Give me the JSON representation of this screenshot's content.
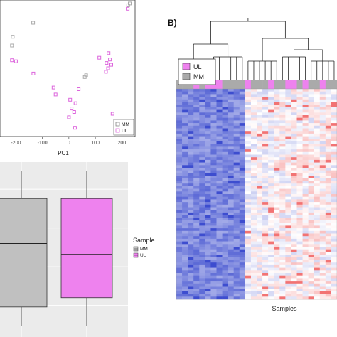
{
  "chart_data": [
    {
      "type": "scatter",
      "xlabel": "PC1",
      "ylabel": "",
      "xlim": [
        -260,
        250
      ],
      "ylim": [
        -150,
        240
      ],
      "xticks": [
        -200,
        -100,
        0,
        100,
        200
      ],
      "tick_labels": [
        "-200",
        "-100",
        "0",
        "100",
        "200"
      ],
      "grid": true,
      "legend": {
        "placement": "bottom-right",
        "entries": [
          "MM",
          "UL"
        ]
      },
      "colors": {
        "MM": "#aaaaaa",
        "UL": "#dd66dd"
      },
      "series": [
        {
          "name": "MM",
          "x": [
            230,
            224,
            -212,
            -215,
            -135,
            60,
            65
          ],
          "y": [
            230,
            225,
            135,
            110,
            175,
            20,
            25
          ]
        },
        {
          "name": "UL",
          "x": [
            -215,
            -200,
            -134,
            155,
            160,
            148,
            140,
            142,
            -58,
            5,
            25,
            37,
            -50,
            10,
            20,
            0,
            23,
            165,
            222,
            150,
            115
          ],
          "y": [
            68,
            65,
            30,
            70,
            55,
            45,
            35,
            60,
            -10,
            -45,
            -55,
            -15,
            -30,
            -70,
            -80,
            -95,
            -125,
            -85,
            215,
            88,
            75
          ]
        }
      ]
    },
    {
      "type": "box",
      "legend": {
        "title": "Sample",
        "placement": "right",
        "entries": [
          "MM",
          "UL"
        ]
      },
      "colors": {
        "MM": "#c0c0c0",
        "UL": "#ee82ee"
      },
      "boxes": [
        {
          "name": "MM",
          "min": 0.0,
          "q1": 0.12,
          "median": 0.53,
          "q3": 0.82,
          "max": 1.0
        },
        {
          "name": "UL",
          "min": 0.0,
          "q1": 0.18,
          "median": 0.46,
          "q3": 0.82,
          "max": 1.0
        }
      ]
    },
    {
      "type": "heatmap",
      "panel_label": "B)",
      "xlabel": "Samples",
      "legend": {
        "placement": "top-left",
        "entries": [
          "UL",
          "MM"
        ]
      },
      "colors": {
        "UL": "#ee82ee",
        "MM": "#aaaaaa",
        "low": "#3344cc",
        "mid": "#ffffff",
        "high": "#ee4444"
      },
      "annotation": [
        "MM",
        "MM",
        "MM",
        "UL",
        "MM",
        "UL",
        "UL",
        "UL",
        "MM",
        "MM",
        "MM",
        "MM",
        "UL",
        "MM",
        "MM",
        "MM",
        "UL",
        "MM",
        "MM",
        "UL",
        "UL",
        "MM",
        "UL",
        "MM",
        "MM",
        "UL",
        "MM",
        "MM"
      ]
    }
  ]
}
